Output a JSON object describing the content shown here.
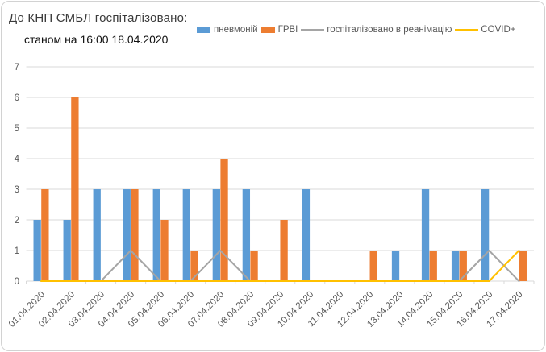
{
  "chart_data": {
    "type": "bar",
    "title": "До КНП СМБЛ госпіталізовано:",
    "subtitle": "станом на 16:00 18.04.2020",
    "categories": [
      "01.04.2020",
      "02.04.2020",
      "03.04.2020",
      "04.04.2020",
      "05.04.2020",
      "06.04.2020",
      "07.04.2020",
      "08.04.2020",
      "09.04.2020",
      "10.04.2020",
      "11.04.2020",
      "12.04.2020",
      "13.04.2020",
      "14.04.2020",
      "15.04.2020",
      "16.04.2020",
      "17.04.2020"
    ],
    "series": [
      {
        "name": "пневмоній",
        "type": "bar",
        "color": "#5B9BD5",
        "values": [
          2,
          2,
          3,
          3,
          3,
          3,
          3,
          3,
          0,
          3,
          0,
          0,
          1,
          3,
          1,
          3,
          0
        ]
      },
      {
        "name": "ГРВІ",
        "type": "bar",
        "color": "#ED7D31",
        "values": [
          3,
          6,
          0,
          3,
          2,
          1,
          4,
          1,
          2,
          0,
          0,
          1,
          0,
          1,
          1,
          0,
          1
        ]
      },
      {
        "name": "госпіталізовано в реанімацію",
        "type": "line",
        "color": "#A5A5A5",
        "values": [
          0,
          0,
          0,
          1,
          0,
          0,
          1,
          0,
          0,
          0,
          0,
          0,
          0,
          0,
          0,
          1,
          0
        ]
      },
      {
        "name": "COVID+",
        "type": "line",
        "color": "#FFC000",
        "values": [
          0,
          0,
          0,
          0,
          0,
          0,
          0,
          0,
          0,
          0,
          0,
          0,
          0,
          0,
          0,
          0,
          1
        ]
      }
    ],
    "xlabel": "",
    "ylabel": "",
    "ylim": [
      0,
      7
    ],
    "yticks": [
      0,
      1,
      2,
      3,
      4,
      5,
      6,
      7
    ],
    "grid": true,
    "legend_position": "top",
    "gridline_color": "#D9D9D9",
    "axis_tick_color": "#D9D9D9",
    "axis_label_color": "#595959"
  }
}
